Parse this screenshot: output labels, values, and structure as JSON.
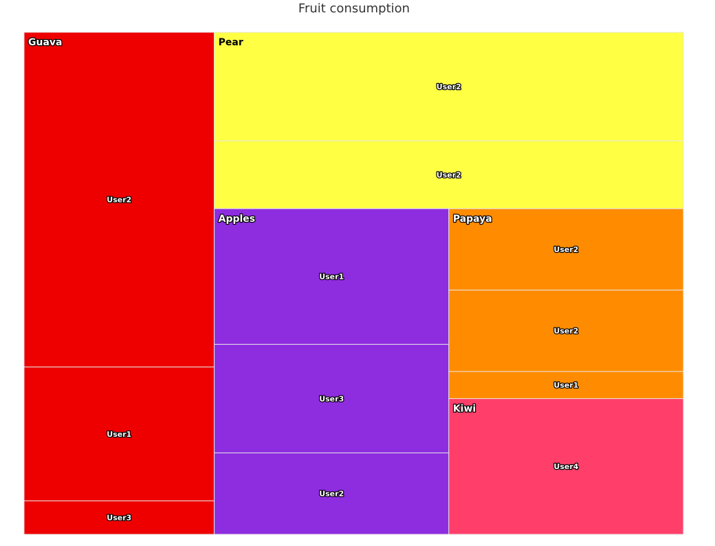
{
  "chart_data": {
    "type": "treemap",
    "title": "Fruit consumption",
    "groups": [
      {
        "name": "Guava",
        "color": "#ef0000",
        "items": [
          {
            "name": "User2",
            "value": 10
          },
          {
            "name": "User1",
            "value": 4
          },
          {
            "name": "User3",
            "value": 1
          }
        ]
      },
      {
        "name": "Pear",
        "color": "#ffff44",
        "items": [
          {
            "name": "User2",
            "value": 8
          },
          {
            "name": "User2",
            "value": 5
          }
        ]
      },
      {
        "name": "Apples",
        "color": "#8e2de0",
        "items": [
          {
            "name": "User1",
            "value": 5
          },
          {
            "name": "User3",
            "value": 4
          },
          {
            "name": "User2",
            "value": 3
          }
        ]
      },
      {
        "name": "Papaya",
        "color": "#ff8c00",
        "items": [
          {
            "name": "User2",
            "value": 3
          },
          {
            "name": "User2",
            "value": 3
          },
          {
            "name": "User1",
            "value": 1
          }
        ]
      },
      {
        "name": "Kiwi",
        "color": "#ff3f6a",
        "items": [
          {
            "name": "User4",
            "value": 5
          }
        ]
      }
    ]
  }
}
